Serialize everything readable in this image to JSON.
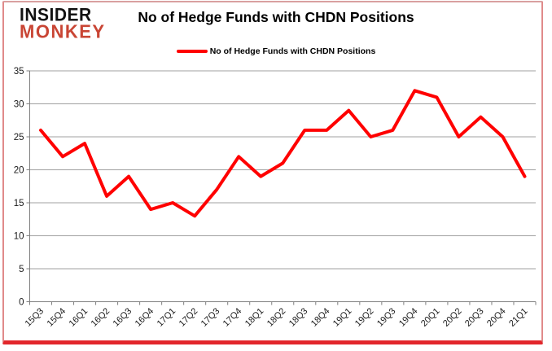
{
  "logo": {
    "line1": "INSIDER",
    "line2": "MONKEY"
  },
  "header": {
    "title": "No of Hedge Funds with CHDN Positions"
  },
  "legend": {
    "label": "No of Hedge Funds with CHDN Positions"
  },
  "colors": {
    "line": "#ff0000",
    "logo_black": "#121212",
    "logo_red": "#c94534",
    "grid": "#a0a0a0",
    "axis": "#7f7f7f",
    "tick_label": "#1a1a1a",
    "border_side": "#e08a8a",
    "border_bottom": "#e2262b"
  },
  "chart_data": {
    "type": "line",
    "title": "No of Hedge Funds with CHDN Positions",
    "series_name": "No of Hedge Funds with CHDN Positions",
    "categories": [
      "15Q3",
      "15Q4",
      "16Q1",
      "16Q2",
      "16Q3",
      "16Q4",
      "17Q1",
      "17Q2",
      "17Q3",
      "17Q4",
      "18Q1",
      "18Q2",
      "18Q3",
      "18Q4",
      "19Q1",
      "19Q2",
      "19Q3",
      "19Q4",
      "20Q1",
      "20Q2",
      "20Q3",
      "20Q4",
      "21Q1"
    ],
    "values": [
      26,
      22,
      24,
      16,
      19,
      14,
      15,
      13,
      17,
      22,
      19,
      21,
      26,
      26,
      29,
      25,
      26,
      32,
      31,
      25,
      28,
      25,
      19
    ],
    "xlabel": "",
    "ylabel": "",
    "ylim": [
      0,
      35
    ],
    "ytick_step": 5,
    "grid": true,
    "legend_position": "top-center",
    "line_width": 4
  }
}
